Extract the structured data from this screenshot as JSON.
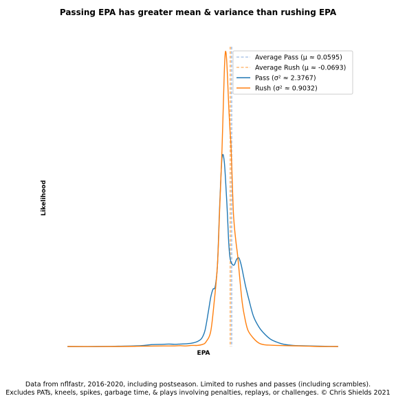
{
  "chart_data": {
    "type": "line",
    "title": "Passing EPA has greater mean & variance than rushing EPA",
    "xlabel": "EPA",
    "ylabel": "Likelihood",
    "xlim": [
      -15,
      10
    ],
    "ylim": [
      0,
      1.12
    ],
    "grid": false,
    "legend_position": "top-right",
    "means": [
      {
        "label": "Average Pass (μ ≈ 0.0595)",
        "x": 0.0595,
        "color": "#aec7e8"
      },
      {
        "label": "Average Rush (μ ≈ -0.0693)",
        "x": -0.0693,
        "color": "#ffbb78"
      }
    ],
    "series": [
      {
        "name": "Pass (σ² ≈ 2.3767)",
        "color": "#1f77b4",
        "x": [
          -14.5,
          -12,
          -10,
          -8,
          -7,
          -6,
          -5.5,
          -5,
          -4.5,
          -4,
          -3.5,
          -3,
          -2.6,
          -2.3,
          -2.0,
          -1.8,
          -1.6,
          -1.4,
          -1.2,
          -1.0,
          -0.8,
          -0.6,
          -0.4,
          -0.3,
          -0.2,
          -0.1,
          0.0,
          0.15,
          0.3,
          0.5,
          0.7,
          0.9,
          1.1,
          1.3,
          1.6,
          2.0,
          2.5,
          3.0,
          3.5,
          4.0,
          4.5,
          5.0,
          5.5,
          6.0,
          7,
          8,
          9.5
        ],
        "y": [
          0.0,
          0.0,
          0.001,
          0.003,
          0.007,
          0.008,
          0.009,
          0.008,
          0.009,
          0.01,
          0.012,
          0.018,
          0.03,
          0.06,
          0.13,
          0.18,
          0.21,
          0.22,
          0.3,
          0.52,
          0.69,
          0.68,
          0.55,
          0.47,
          0.38,
          0.33,
          0.31,
          0.3,
          0.3,
          0.32,
          0.325,
          0.3,
          0.26,
          0.22,
          0.17,
          0.11,
          0.07,
          0.045,
          0.027,
          0.017,
          0.01,
          0.006,
          0.004,
          0.003,
          0.002,
          0.001,
          0.0
        ]
      },
      {
        "name": "Rush (σ² ≈ 0.9032)",
        "color": "#ff7f0e",
        "x": [
          -14.5,
          -10,
          -8,
          -6,
          -5,
          -4.5,
          -4,
          -3.5,
          -3,
          -2.5,
          -2.2,
          -1.8,
          -1.5,
          -1.2,
          -1.0,
          -0.8,
          -0.6,
          -0.5,
          -0.4,
          -0.3,
          -0.2,
          -0.1,
          0.0,
          0.1,
          0.2,
          0.3,
          0.45,
          0.6,
          0.8,
          1.0,
          1.2,
          1.5,
          2.0,
          2.5,
          3.0,
          3.5,
          4.0,
          5.0,
          6.0,
          7.0,
          8.0,
          9.5
        ],
        "y": [
          0.0,
          0.0,
          0.001,
          0.002,
          0.002,
          0.003,
          0.002,
          0.004,
          0.004,
          0.008,
          0.018,
          0.055,
          0.16,
          0.3,
          0.51,
          0.72,
          1.0,
          1.08,
          1.06,
          0.98,
          0.88,
          0.8,
          0.74,
          0.62,
          0.5,
          0.44,
          0.38,
          0.33,
          0.24,
          0.16,
          0.11,
          0.06,
          0.03,
          0.012,
          0.006,
          0.005,
          0.004,
          0.003,
          0.002,
          0.001,
          0.0,
          0.0
        ]
      }
    ],
    "caption": [
      "Data from nflfastr, 2016-2020, including postseason. Limited to rushes and passes (including scrambles).",
      "Excludes PATs, kneels, spikes, garbage time, & plays involving penalties, replays, or challenges. © Chris Shields 2021"
    ]
  }
}
